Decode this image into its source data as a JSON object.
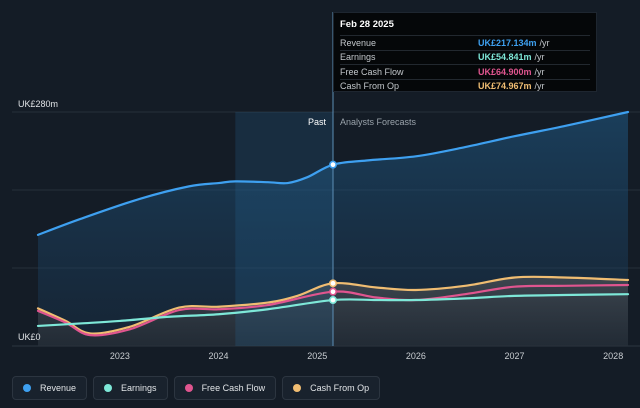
{
  "tooltip": {
    "date": "Feb 28 2025",
    "rows": [
      {
        "label": "Revenue",
        "value": "UK£217.134m",
        "unit": "/yr",
        "color": "#3ea0f0"
      },
      {
        "label": "Earnings",
        "value": "UK£54.841m",
        "unit": "/yr",
        "color": "#7ee8d8"
      },
      {
        "label": "Free Cash Flow",
        "value": "UK£64.900m",
        "unit": "/yr",
        "color": "#e0558f"
      },
      {
        "label": "Cash From Op",
        "value": "UK£74.967m",
        "unit": "/yr",
        "color": "#f0bd72"
      }
    ]
  },
  "chart_data": {
    "type": "line",
    "ylim": [
      0,
      280
    ],
    "xlim": [
      2022.17,
      2028.15
    ],
    "y_top_label": "UK£280m",
    "y_bottom_label": "UK£0",
    "x_ticks": [
      "2023",
      "2024",
      "2025",
      "2026",
      "2027",
      "2028"
    ],
    "x_tick_values": [
      2023,
      2024,
      2025,
      2026,
      2027,
      2028
    ],
    "past_label": "Past",
    "forecast_label": "Analysts Forecasts",
    "divider_x": 2025.16,
    "highlight_start_x": 2024.17,
    "grid": true,
    "series": [
      {
        "name": "Revenue",
        "color": "#3ea0f0",
        "x": [
          2022.17,
          2022.6,
          2023.2,
          2023.7,
          2024.0,
          2024.17,
          2024.5,
          2024.7,
          2024.9,
          2025.16,
          2025.5,
          2026.0,
          2026.5,
          2027.0,
          2027.5,
          2028.15
        ],
        "y": [
          133,
          152,
          176,
          191,
          195,
          197,
          196,
          195,
          202,
          217,
          222,
          227,
          238,
          251,
          263,
          280
        ]
      },
      {
        "name": "Earnings",
        "color": "#7ee8d8",
        "x": [
          2022.17,
          2022.6,
          2023.0,
          2023.5,
          2024.0,
          2024.5,
          2025.16,
          2025.6,
          2026.0,
          2026.5,
          2027.0,
          2027.5,
          2028.15
        ],
        "y": [
          24,
          27,
          30,
          35,
          38,
          44,
          55,
          55,
          55,
          57,
          60,
          61,
          62
        ]
      },
      {
        "name": "Free Cash Flow",
        "color": "#e0558f",
        "x": [
          2022.17,
          2022.45,
          2022.7,
          2023.1,
          2023.6,
          2024.0,
          2024.5,
          2025.16,
          2025.6,
          2026.0,
          2026.5,
          2027.0,
          2027.5,
          2028.15
        ],
        "y": [
          42,
          28,
          13,
          20,
          43,
          44,
          49,
          65,
          58,
          55,
          62,
          71,
          72,
          73
        ]
      },
      {
        "name": "Cash From Op",
        "color": "#f0bd72",
        "x": [
          2022.17,
          2022.45,
          2022.7,
          2023.1,
          2023.6,
          2024.0,
          2024.5,
          2024.8,
          2025.16,
          2025.6,
          2026.0,
          2026.5,
          2027.0,
          2027.5,
          2028.15
        ],
        "y": [
          45,
          30,
          15,
          23,
          46,
          47,
          52,
          60,
          75,
          70,
          67,
          72,
          82,
          82,
          79
        ]
      }
    ]
  },
  "legend": [
    {
      "label": "Revenue",
      "color": "#3ea0f0"
    },
    {
      "label": "Earnings",
      "color": "#7ee8d8"
    },
    {
      "label": "Free Cash Flow",
      "color": "#e0558f"
    },
    {
      "label": "Cash From Op",
      "color": "#f0bd72"
    }
  ]
}
